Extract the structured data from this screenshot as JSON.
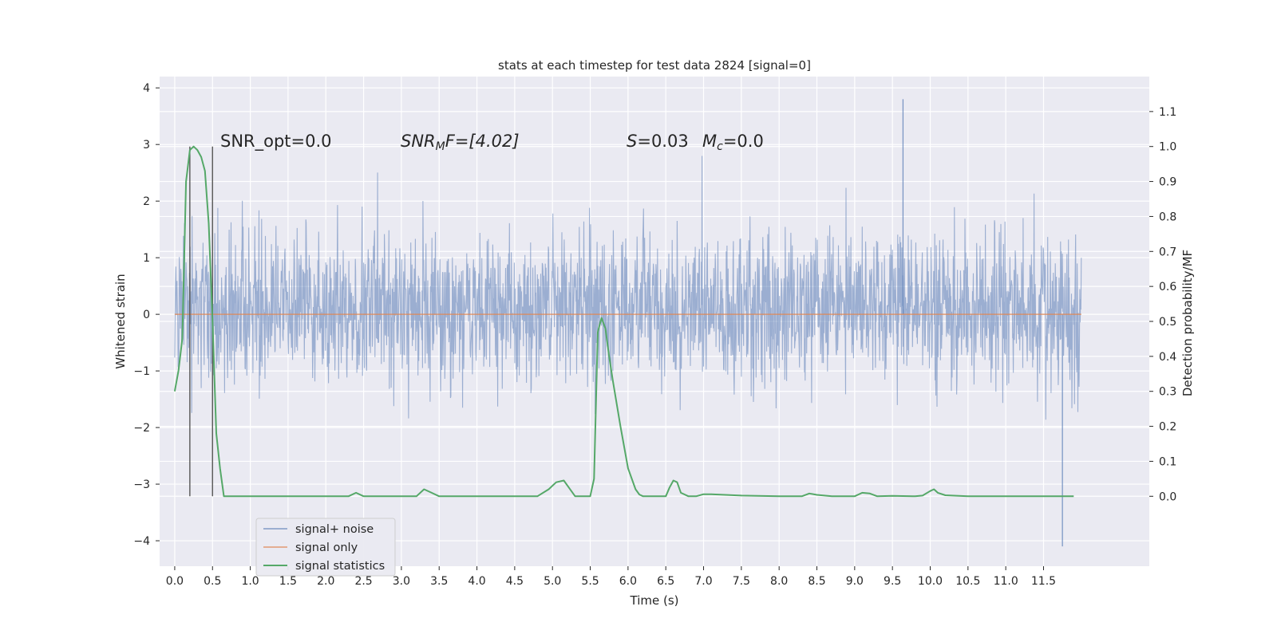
{
  "chart_data": {
    "type": "line",
    "title": "stats at each timestep for test data 2824 [signal=0]",
    "xlabel": "Time (s)",
    "ylabel": "Whitened strain",
    "y2label": "Detection probability/MF",
    "xlim": [
      -0.2,
      12.9
    ],
    "ylim": [
      -4.45,
      4.2
    ],
    "y2lim": [
      -0.2,
      1.2
    ],
    "x_ticks": [
      0.0,
      0.5,
      1.0,
      1.5,
      2.0,
      2.5,
      3.0,
      3.5,
      4.0,
      4.5,
      5.0,
      5.5,
      6.0,
      6.5,
      7.0,
      7.5,
      8.0,
      8.5,
      9.0,
      9.5,
      10.0,
      10.5,
      11.0,
      11.5
    ],
    "x_tick_labels": [
      "0.0",
      "0.5",
      "1.0",
      "1.5",
      "2.0",
      "2.5",
      "3.0",
      "3.5",
      "4.0",
      "4.5",
      "5.0",
      "5.5",
      "6.0",
      "6.5",
      "7.0",
      "7.5",
      "8.0",
      "8.5",
      "9.0",
      "9.5",
      "10.0",
      "10.5",
      "11.0",
      "11.5"
    ],
    "y_ticks": [
      -4,
      -3,
      -2,
      -1,
      0,
      1,
      2,
      3,
      4
    ],
    "y_tick_labels": [
      "−4",
      "−3",
      "−2",
      "−1",
      "0",
      "1",
      "2",
      "3",
      "4"
    ],
    "y2_ticks": [
      0.0,
      0.1,
      0.2,
      0.3,
      0.4,
      0.5,
      0.6,
      0.7,
      0.8,
      0.9,
      1.0,
      1.1
    ],
    "y2_tick_labels": [
      "0.0",
      "0.1",
      "0.2",
      "0.3",
      "0.4",
      "0.5",
      "0.6",
      "0.7",
      "0.8",
      "0.9",
      "1.0",
      "1.1"
    ],
    "grid": true,
    "legend_position": "bottom-left",
    "annotations": {
      "snr_opt": "SNR_opt=0.0",
      "snr_mf_base": "SNR",
      "snr_mf_sub": "M",
      "snr_mf_rest": "F=[4.02]",
      "s_sym": "S",
      "s_rest": "=0.03",
      "mc_base": "M",
      "mc_sub": "c",
      "mc_rest": "=0.0"
    },
    "vlines_x": [
      0.2,
      0.5
    ],
    "series": [
      {
        "name": "signal+ noise",
        "color": "#4c72b0",
        "x_range": [
          0.0,
          12.0
        ],
        "envelope_typical": [
          -1.4,
          1.7
        ],
        "extremes_y": [
          -4.1,
          3.8
        ]
      },
      {
        "name": "signal only",
        "color": "#dd8452",
        "x": [
          0.0,
          12.0
        ],
        "y": [
          0.0,
          0.0
        ]
      },
      {
        "name": "signal statistics",
        "color": "#55a868",
        "axis": "right",
        "x": [
          0.0,
          0.05,
          0.1,
          0.15,
          0.2,
          0.25,
          0.3,
          0.35,
          0.4,
          0.45,
          0.5,
          0.55,
          0.6,
          0.65,
          0.7,
          0.8,
          1.0,
          1.5,
          2.0,
          2.3,
          2.4,
          2.5,
          2.6,
          3.0,
          3.2,
          3.3,
          3.4,
          3.5,
          3.6,
          4.0,
          4.5,
          4.8,
          4.95,
          5.05,
          5.15,
          5.2,
          5.3,
          5.4,
          5.5,
          5.55,
          5.6,
          5.65,
          5.7,
          5.75,
          5.8,
          5.9,
          6.0,
          6.1,
          6.15,
          6.2,
          6.3,
          6.4,
          6.5,
          6.55,
          6.6,
          6.65,
          6.7,
          6.8,
          6.9,
          7.0,
          7.1,
          7.5,
          8.0,
          8.3,
          8.4,
          8.5,
          8.7,
          9.0,
          9.1,
          9.2,
          9.3,
          9.5,
          9.8,
          9.9,
          10.0,
          10.05,
          10.1,
          10.2,
          10.5,
          11.0,
          11.5,
          11.9
        ],
        "y": [
          0.3,
          0.36,
          0.45,
          0.9,
          0.99,
          1.0,
          0.99,
          0.97,
          0.93,
          0.78,
          0.5,
          0.18,
          0.08,
          0.0,
          0.0,
          0.0,
          0.0,
          0.0,
          0.0,
          0.0,
          0.01,
          0.0,
          0.0,
          0.0,
          0.0,
          0.02,
          0.01,
          0.0,
          0.0,
          0.0,
          0.0,
          0.0,
          0.02,
          0.04,
          0.045,
          0.03,
          0.0,
          0.0,
          0.0,
          0.05,
          0.47,
          0.51,
          0.48,
          0.4,
          0.33,
          0.2,
          0.08,
          0.02,
          0.005,
          0.0,
          0.0,
          0.0,
          0.0,
          0.025,
          0.045,
          0.04,
          0.01,
          0.0,
          0.0,
          0.006,
          0.006,
          0.002,
          0.0,
          0.0,
          0.008,
          0.004,
          0.0,
          0.0,
          0.01,
          0.008,
          0.0,
          0.001,
          0.0,
          0.002,
          0.015,
          0.02,
          0.01,
          0.003,
          0.0,
          0.0,
          0.0,
          0.0
        ]
      }
    ]
  }
}
